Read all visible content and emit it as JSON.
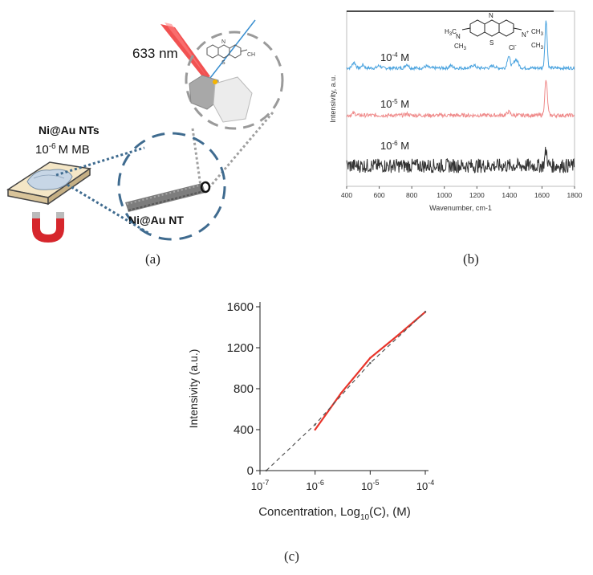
{
  "panel_a": {
    "caption": "(a)",
    "laser_label": "633 nm",
    "substrate_label": "Ni@Au NTs",
    "concentration_label": "10",
    "concentration_exp": "-6",
    "concentration_unit": "M  MB",
    "nanotube_label": "Ni@Au NT",
    "molecule_charge": "+",
    "molecule_ch3": "CH",
    "molecule_n": "N",
    "molecule_s": "S"
  },
  "panel_b": {
    "caption": "(b)",
    "spectrum_labels": [
      {
        "base": "10",
        "exp": "-4",
        "unit": " M"
      },
      {
        "base": "10",
        "exp": "-5",
        "unit": " M"
      },
      {
        "base": "10",
        "exp": "-6",
        "unit": " M"
      }
    ],
    "molecule": {
      "h3c": "H",
      "ch3": "CH",
      "n": "N",
      "s": "S",
      "cl": "Cl",
      "plus": "+"
    }
  },
  "panel_c": {
    "caption": "(c)"
  },
  "chart_data": [
    {
      "type": "line",
      "xlabel": "Wavenumber, cm-1",
      "ylabel": "Intensivity, a.u.",
      "xlim": [
        400,
        1800
      ],
      "x_ticks": [
        400,
        600,
        800,
        1000,
        1200,
        1400,
        1600,
        1800
      ],
      "y_ticks_shown": false,
      "series": [
        {
          "name": "10-4 M",
          "color": "#4aa3df",
          "offset": 0.72,
          "noise": 0.01,
          "scale": 0.3,
          "peaks": [
            [
              445,
              0.12,
              10
            ],
            [
              500,
              0.07,
              8
            ],
            [
              600,
              0.05,
              10
            ],
            [
              770,
              0.08,
              10
            ],
            [
              890,
              0.04,
              10
            ],
            [
              1040,
              0.05,
              10
            ],
            [
              1180,
              0.06,
              12
            ],
            [
              1300,
              0.05,
              12
            ],
            [
              1395,
              0.25,
              9
            ],
            [
              1440,
              0.18,
              14
            ],
            [
              1625,
              1.0,
              7
            ]
          ]
        },
        {
          "name": "10-5 M",
          "color": "#ef8a8a",
          "offset": 0.42,
          "noise": 0.012,
          "scale": 0.22,
          "peaks": [
            [
              445,
              0.06,
              10
            ],
            [
              770,
              0.04,
              10
            ],
            [
              1395,
              0.1,
              10
            ],
            [
              1625,
              1.0,
              8
            ]
          ]
        },
        {
          "name": "10-6 M",
          "color": "#333333",
          "offset": 0.1,
          "noise": 0.045,
          "scale": 0.12,
          "peaks": [
            [
              1625,
              0.8,
              7
            ]
          ]
        }
      ]
    },
    {
      "type": "line",
      "xlabel": "Concentration, Log10(C), (M)",
      "xlabel_base": "Concentration, Log",
      "xlabel_sub": "10",
      "xlabel_tail": "(C), (M)",
      "ylabel": "Intensivity (a.u.)",
      "x_scale": "log",
      "xlim": [
        1e-07,
        0.0001
      ],
      "ylim": [
        0,
        1600
      ],
      "y_ticks": [
        0,
        400,
        800,
        1200,
        1600
      ],
      "x_ticks": [
        {
          "value": 1e-07,
          "base": "10",
          "exp": "-7"
        },
        {
          "value": 1e-06,
          "base": "10",
          "exp": "-6"
        },
        {
          "value": 1e-05,
          "base": "10",
          "exp": "-5"
        },
        {
          "value": 0.0001,
          "base": "10",
          "exp": "-4"
        }
      ],
      "series": [
        {
          "style": "solid",
          "color": "#e8342a",
          "x": [
            1e-06,
            3e-06,
            1e-05,
            3e-05,
            0.0001
          ],
          "y": [
            400,
            760,
            1100,
            1310,
            1550
          ]
        },
        {
          "style": "dashed",
          "color": "#555555",
          "x": [
            1.3e-07,
            1e-06,
            1e-05,
            0.0001
          ],
          "y": [
            0,
            450,
            1050,
            1550
          ]
        }
      ]
    }
  ]
}
